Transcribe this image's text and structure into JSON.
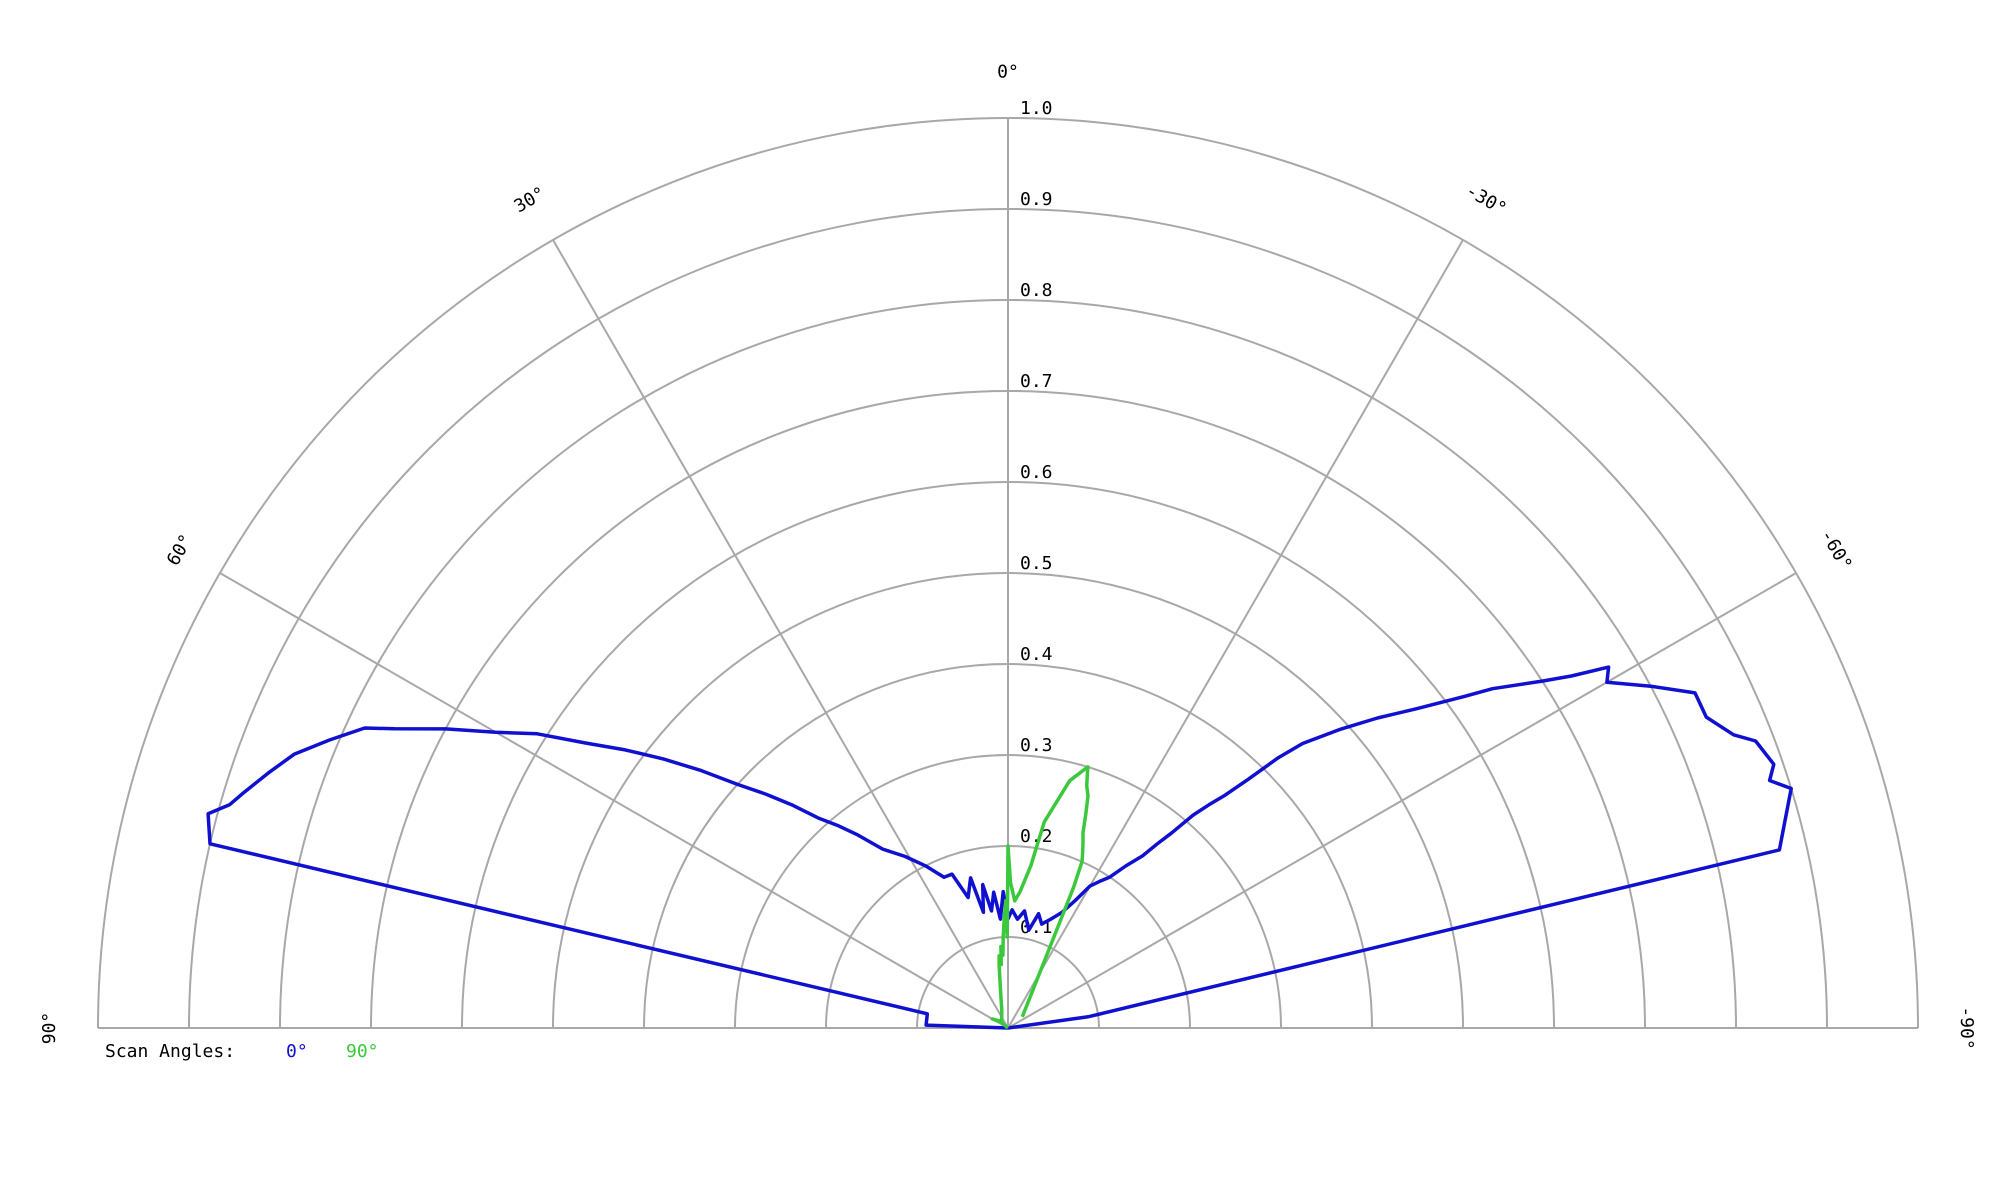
{
  "chart_data": {
    "type": "polar-half",
    "grid": true,
    "r_range": [
      0,
      1.0
    ],
    "theta_range_deg": [
      -90,
      90
    ],
    "radial_ticks": [
      "0.1",
      "0.2",
      "0.3",
      "0.4",
      "0.5",
      "0.6",
      "0.7",
      "0.8",
      "0.9",
      "1.0"
    ],
    "radial_tick_values": [
      0.1,
      0.2,
      0.3,
      0.4,
      0.5,
      0.6,
      0.7,
      0.8,
      0.9,
      1.0
    ],
    "angle_ticks": [
      {
        "angle": 90,
        "label": "90°"
      },
      {
        "angle": 60,
        "label": "60°"
      },
      {
        "angle": 30,
        "label": "30°"
      },
      {
        "angle": 0,
        "label": "0°"
      },
      {
        "angle": -30,
        "label": "-30°"
      },
      {
        "angle": -60,
        "label": "-60°"
      },
      {
        "angle": -90,
        "label": "-90°"
      }
    ],
    "legend": {
      "title": "Scan Angles:",
      "placement": "bottom-left",
      "entries": [
        {
          "label": "0°",
          "color": "#1010d0"
        },
        {
          "label": "90°",
          "color": "#3cc83c"
        }
      ]
    },
    "series": [
      {
        "name": "0°",
        "color": "#1010d0",
        "points": [
          [
            -82,
            0.09
          ],
          [
            -77,
            0.87
          ],
          [
            -73,
            0.9
          ],
          [
            -72,
            0.88
          ],
          [
            -71,
            0.89
          ],
          [
            -69,
            0.88
          ],
          [
            -68,
            0.86
          ],
          [
            -66,
            0.84
          ],
          [
            -64,
            0.84
          ],
          [
            -62,
            0.8
          ],
          [
            -60,
            0.76
          ],
          [
            -59,
            0.77
          ],
          [
            -58,
            0.73
          ],
          [
            -57,
            0.7
          ],
          [
            -55,
            0.65
          ],
          [
            -54,
            0.62
          ],
          [
            -52,
            0.57
          ],
          [
            -50,
            0.53
          ],
          [
            -48,
            0.49
          ],
          [
            -46,
            0.45
          ],
          [
            -45,
            0.42
          ],
          [
            -44,
            0.38
          ],
          [
            -43,
            0.35
          ],
          [
            -42,
            0.33
          ],
          [
            -41,
            0.31
          ],
          [
            -40,
            0.28
          ],
          [
            -39,
            0.26
          ],
          [
            -38,
            0.24
          ],
          [
            -36,
            0.22
          ],
          [
            -34,
            0.2
          ],
          [
            -32,
            0.19
          ],
          [
            -30,
            0.18
          ],
          [
            -28,
            0.16
          ],
          [
            -25,
            0.14
          ],
          [
            -22,
            0.13
          ],
          [
            -18,
            0.12
          ],
          [
            -15,
            0.13
          ],
          [
            -12,
            0.11
          ],
          [
            -8,
            0.13
          ],
          [
            -5,
            0.12
          ],
          [
            -2,
            0.13
          ],
          [
            0,
            0.12
          ],
          [
            2,
            0.15
          ],
          [
            4,
            0.12
          ],
          [
            6,
            0.15
          ],
          [
            8,
            0.13
          ],
          [
            10,
            0.16
          ],
          [
            12,
            0.13
          ],
          [
            14,
            0.17
          ],
          [
            17,
            0.15
          ],
          [
            20,
            0.18
          ],
          [
            23,
            0.18
          ],
          [
            27,
            0.2
          ],
          [
            31,
            0.22
          ],
          [
            35,
            0.24
          ],
          [
            38,
            0.27
          ],
          [
            40,
            0.29
          ],
          [
            42,
            0.31
          ],
          [
            44,
            0.34
          ],
          [
            46,
            0.37
          ],
          [
            48,
            0.4
          ],
          [
            50,
            0.44
          ],
          [
            52,
            0.48
          ],
          [
            54,
            0.52
          ],
          [
            56,
            0.56
          ],
          [
            58,
            0.61
          ],
          [
            60,
            0.65
          ],
          [
            62,
            0.7
          ],
          [
            64,
            0.75
          ],
          [
            65,
            0.78
          ],
          [
            67,
            0.81
          ],
          [
            69,
            0.84
          ],
          [
            71,
            0.86
          ],
          [
            73,
            0.88
          ],
          [
            74,
            0.89
          ],
          [
            75,
            0.91
          ],
          [
            77,
            0.9
          ],
          [
            80,
            0.09
          ],
          [
            88,
            0.09
          ],
          [
            90,
            0.0
          ],
          [
            -88,
            0.0
          ],
          [
            -82,
            0.09
          ]
        ]
      },
      {
        "name": "90°",
        "color": "#3cc83c",
        "points": [
          [
            -52,
            0.02
          ],
          [
            -25,
            0.17
          ],
          [
            -24,
            0.2
          ],
          [
            -23,
            0.21
          ],
          [
            -22,
            0.22
          ],
          [
            -21,
            0.23
          ],
          [
            -20,
            0.25
          ],
          [
            -19,
            0.27
          ],
          [
            -18,
            0.28
          ],
          [
            -17,
            0.3
          ],
          [
            -14,
            0.28
          ],
          [
            -10,
            0.23
          ],
          [
            -8,
            0.18
          ],
          [
            -5,
            0.15
          ],
          [
            -3,
            0.14
          ],
          [
            -1,
            0.16
          ],
          [
            0,
            0.2
          ],
          [
            0.5,
            0.1
          ],
          [
            1,
            0.14
          ],
          [
            2,
            0.12
          ],
          [
            3,
            0.1
          ],
          [
            4,
            0.08
          ],
          [
            5,
            0.09
          ],
          [
            6,
            0.07
          ],
          [
            7,
            0.08
          ],
          [
            8,
            0.07
          ],
          [
            10,
            0.05
          ],
          [
            20,
            0.02
          ],
          [
            45,
            0.01
          ],
          [
            60,
            0.02
          ],
          [
            50,
            0.01
          ],
          [
            -10,
            0.0
          ]
        ]
      }
    ]
  }
}
